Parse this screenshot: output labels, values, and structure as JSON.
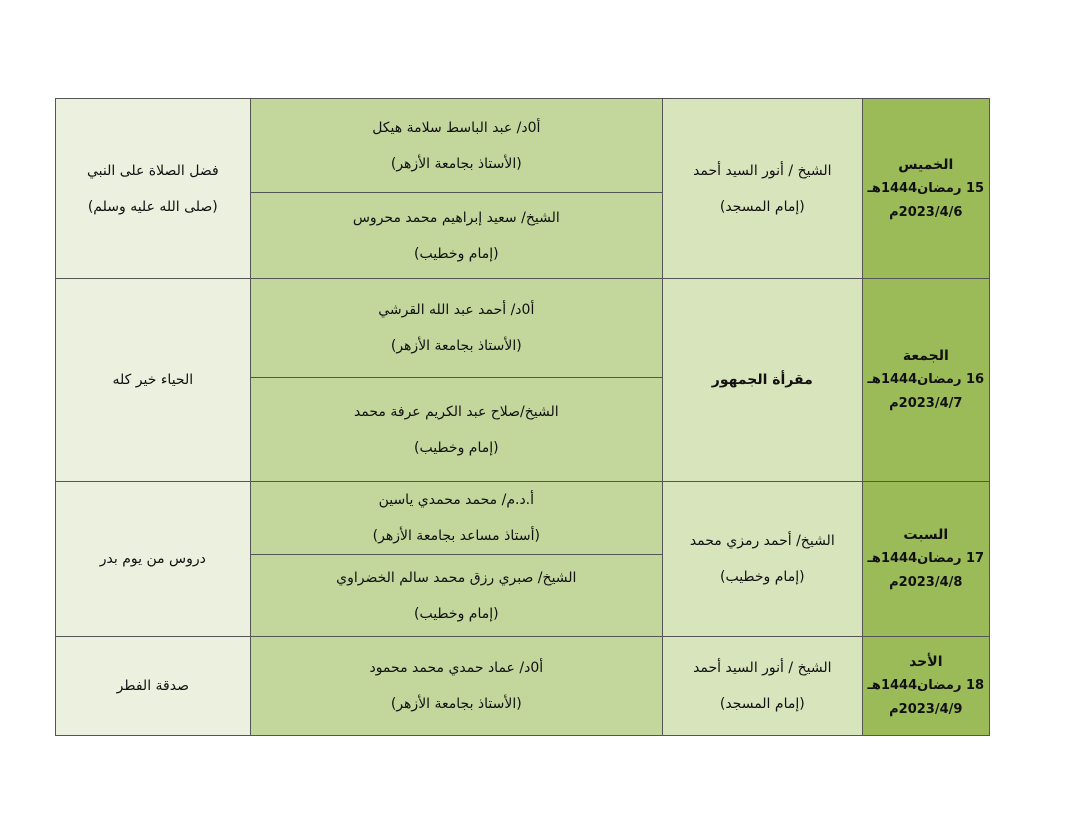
{
  "rows": [
    {
      "day": "الخميس",
      "hijri": "15 رمضان1444هـ",
      "gregorian": "2023/4/6م",
      "imam": [
        "الشيخ / أنور السيد أحمد",
        "(إمام المسجد)"
      ],
      "lecturers": [
        [
          "أ0د/ عبد الباسط سلامة هيكل",
          "(الأستاذ بجامعة الأزهر)"
        ],
        [
          "الشيخ/ سعيد إبراهيم محمد محروس",
          "(إمام وخطيب)"
        ]
      ],
      "topic": [
        "فضل الصلاة على النبي",
        "(صلى الله عليه وسلم)"
      ]
    },
    {
      "day": "الجمعة",
      "hijri": "16 رمضان1444هـ",
      "gregorian": "2023/4/7م",
      "imam": [
        "مقرأة الجمهور"
      ],
      "lecturers": [
        [
          "أ0د/ أحمد عبد الله القرشي",
          "(الأستاذ بجامعة الأزهر)"
        ],
        [
          "الشيخ/صلاح عبد الكريم عرفة محمد",
          "(إمام وخطيب)"
        ]
      ],
      "topic": [
        "الحياء خير كله"
      ]
    },
    {
      "day": "السبت",
      "hijri": "17 رمضان1444هـ",
      "gregorian": "2023/4/8م",
      "imam": [
        "الشيخ/ أحمد رمزي محمد",
        "(إمام وخطيب)"
      ],
      "lecturers": [
        [
          "أ.د.م/ محمد محمدي ياسين",
          "(أستاذ مساعد بجامعة الأزهر)"
        ],
        [
          "الشيخ/ صبري رزق محمد سالم الخضراوي",
          "(إمام وخطيب)"
        ]
      ],
      "topic": [
        "دروس من يوم بدر"
      ]
    },
    {
      "day": "الأحد",
      "hijri": "18 رمضان1444هـ",
      "gregorian": "2023/4/9م",
      "imam": [
        "الشيخ / أنور السيد أحمد",
        "(إمام المسجد)"
      ],
      "lecturers": [
        [
          "أ0د/ عماد حمدي محمد محمود",
          "(الأستاذ بجامعة الأزهر)"
        ]
      ],
      "topic": [
        "صدقة الفطر"
      ]
    }
  ]
}
